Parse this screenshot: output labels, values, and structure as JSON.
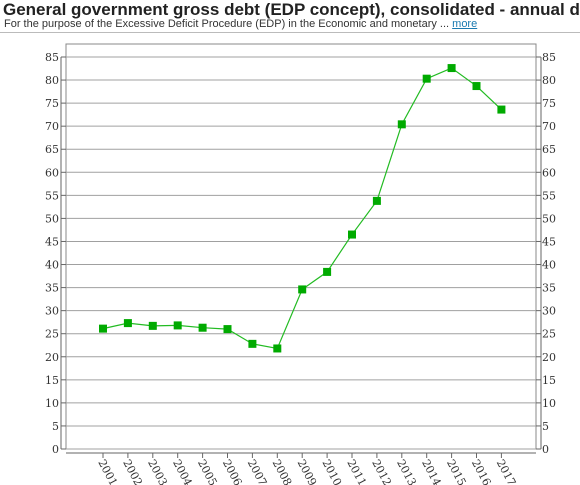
{
  "header": {
    "title": "General government gross debt (EDP concept), consolidated - annual data",
    "subtitle": "For the purpose of the Excessive Deficit Procedure (EDP) in the Economic and monetary ...",
    "more_label": "more"
  },
  "colors": {
    "series": "#22bb22",
    "marker": "#00aa00",
    "grid": "#a0a0a0",
    "axis": "#666666"
  },
  "chart_data": {
    "type": "line",
    "title": "",
    "xlabel": "",
    "ylabel": "",
    "categories": [
      "2001",
      "2002",
      "2003",
      "2004",
      "2005",
      "2006",
      "2007",
      "2008",
      "2009",
      "2010",
      "2011",
      "2012",
      "2013",
      "2014",
      "2015",
      "2016",
      "2017"
    ],
    "series": [
      {
        "values": [
          26.1,
          27.3,
          26.7,
          26.8,
          26.3,
          26.0,
          22.8,
          21.8,
          34.6,
          38.4,
          46.5,
          53.8,
          70.4,
          80.3,
          82.6,
          78.7,
          73.6
        ]
      }
    ],
    "ylim": [
      0,
      85
    ],
    "yticks": [
      0,
      5,
      10,
      15,
      20,
      25,
      30,
      35,
      40,
      45,
      50,
      55,
      60,
      65,
      70,
      75,
      80,
      85
    ],
    "grid": true,
    "legend": "none",
    "right_axis": true
  }
}
